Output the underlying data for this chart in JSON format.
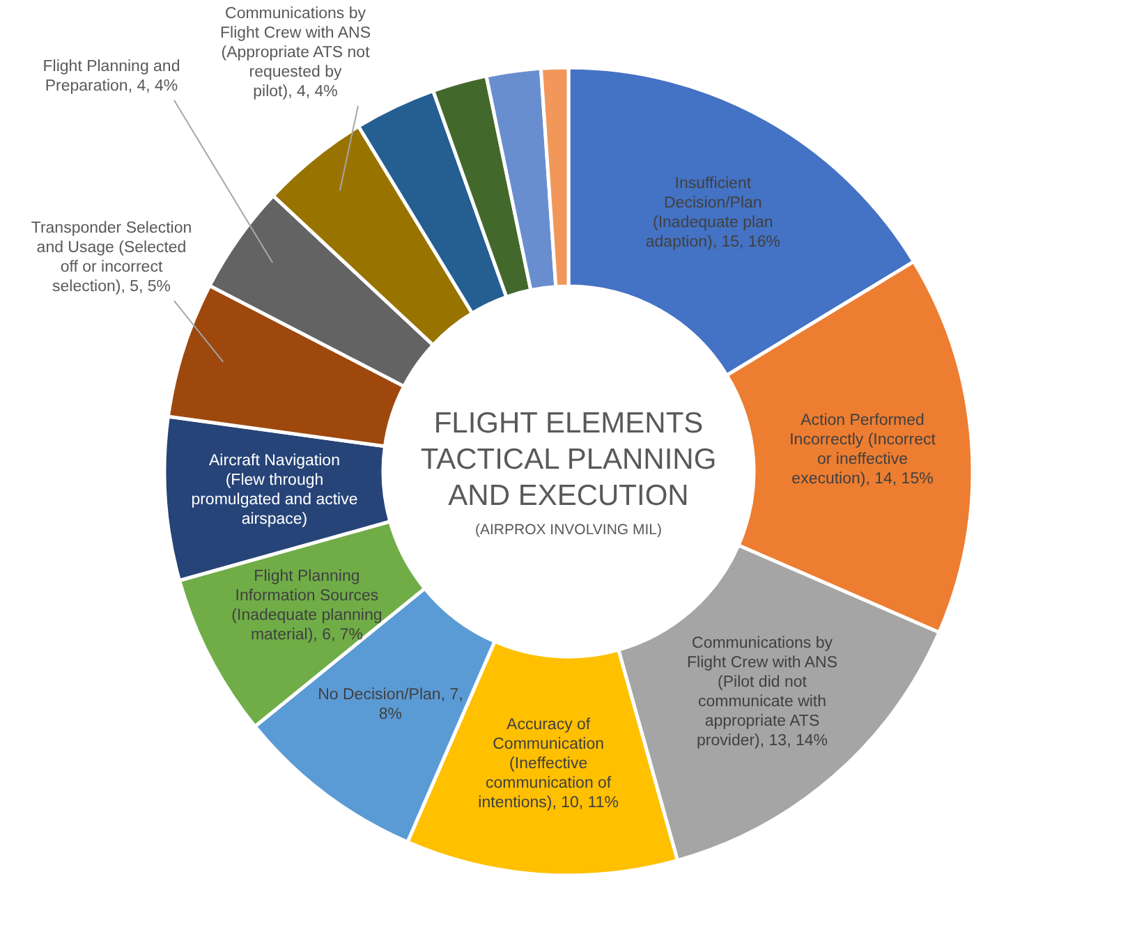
{
  "chart_data": {
    "type": "donut",
    "title": "FLIGHT ELEMENTS TACTICAL PLANNING AND EXECUTION",
    "subtitle": "(AIRPROX INVOLVING MIL)",
    "categories": [
      "Insufficient Decision/Plan (Inadequate plan adaption)",
      "Action Performed Incorrectly (Incorrect or ineffective execution)",
      "Communications by Flight Crew with ANS (Pilot did not communicate with appropriate ATS provider)",
      "Accuracy of Communication (Ineffective communication of intentions)",
      "No Decision/Plan",
      "Flight Planning Information Sources (Inadequate planning material)",
      "Aircraft Navigation (Flew through promulgated and active airspace)",
      "Transponder Selection and Usage (Selected off or incorrect selection)",
      "Flight Planning and Preparation",
      "Communications by Flight Crew with ANS (Appropriate ATS not requested by pilot)",
      null,
      null,
      null,
      null
    ],
    "values": [
      15,
      14,
      13,
      10,
      7,
      6,
      6,
      5,
      4,
      4,
      3,
      2,
      2,
      1
    ],
    "value_labels": [
      "15, 16%",
      "14, 15%",
      "13, 14%",
      "10, 11%",
      "7, 8%",
      "6, 7%",
      null,
      "5, 5%",
      "4, 4%",
      "4, 4%",
      null,
      null,
      null,
      null
    ],
    "colors": [
      "#4472c4",
      "#ed7d31",
      "#a5a5a5",
      "#ffc000",
      "#5b9bd5",
      "#70ad47",
      "#264478",
      "#9e480e",
      "#636363",
      "#997300",
      "#255e91",
      "#43682b",
      "#698ed0",
      "#f1975a"
    ]
  }
}
